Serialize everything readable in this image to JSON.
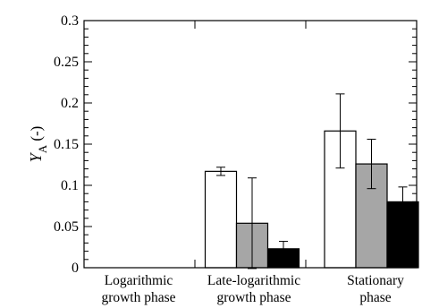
{
  "chart_data": {
    "type": "bar",
    "categories": [
      [
        "Logarithmic",
        "growth phase"
      ],
      [
        "Late-logarithmic",
        "growth phase"
      ],
      [
        "Stationary",
        "phase"
      ]
    ],
    "ylabel": {
      "main": "Y",
      "sub": "A",
      "unit": "(-)"
    },
    "ylim": [
      0,
      0.3
    ],
    "yticks": [
      "0",
      "0.05",
      "0.1",
      "0.15",
      "0.2",
      "0.25",
      "0.3"
    ],
    "grid": false,
    "legend": "none",
    "series": [
      {
        "color": "#ffffff",
        "values": [
          null,
          0.117,
          0.166
        ],
        "errors": [
          null,
          0.005,
          0.045
        ]
      },
      {
        "color": "#a6a6a6",
        "values": [
          null,
          0.054,
          0.126
        ],
        "errors": [
          null,
          0.055,
          0.03
        ]
      },
      {
        "color": "#000000",
        "values": [
          null,
          0.023,
          0.08
        ],
        "errors": [
          null,
          0.009,
          0.018
        ]
      }
    ]
  }
}
